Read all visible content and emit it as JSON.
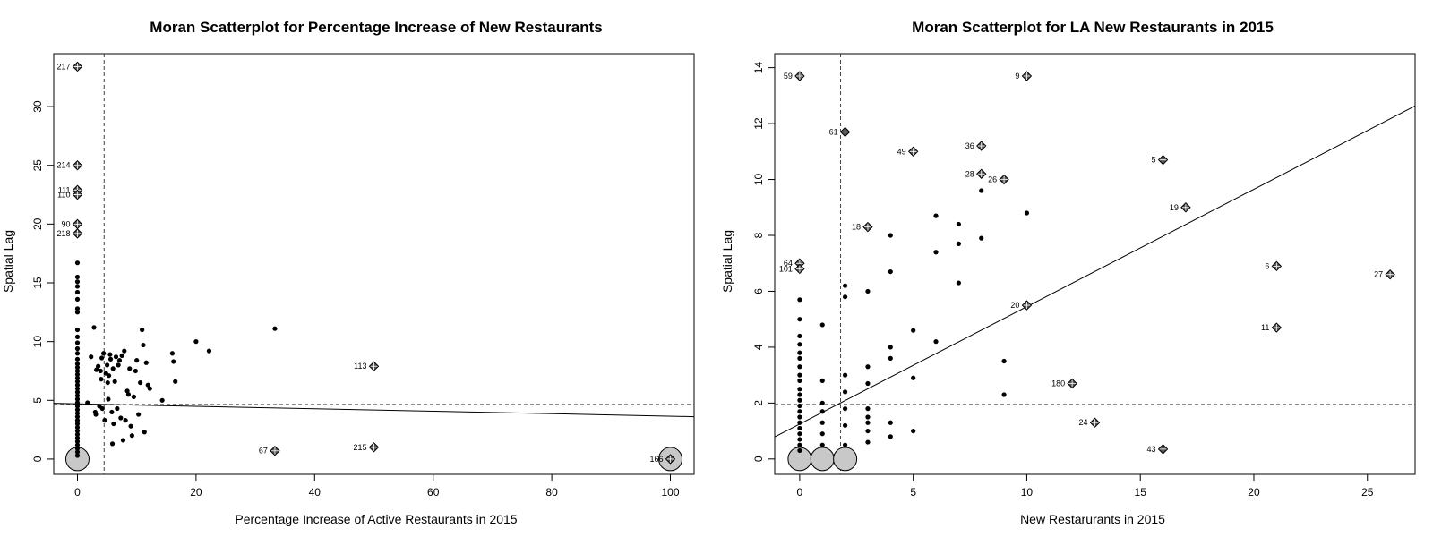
{
  "chart_data": [
    {
      "type": "scatter",
      "title": "Moran Scatterplot for Percentage Increase of New Restaurants",
      "xlabel": "Percentage Increase of Active Restaurants in 2015",
      "ylabel": "Spatial Lag",
      "xlim": [
        -4,
        104
      ],
      "ylim": [
        -1.3,
        34.5
      ],
      "xticks": [
        0,
        20,
        40,
        60,
        80,
        100
      ],
      "yticks": [
        0,
        5,
        10,
        15,
        20,
        25,
        30
      ],
      "xticklabels": [
        "0",
        "20",
        "40",
        "60",
        "80",
        "100"
      ],
      "yticklabels": [
        "0",
        "5",
        "10",
        "15",
        "20",
        "25",
        "30"
      ],
      "mean_x": 4.5,
      "mean_y": 4.65,
      "regression": {
        "intercept": 4.7,
        "slope": -0.0105
      },
      "grid": false,
      "legend": "none",
      "points": [
        [
          0,
          0.3
        ],
        [
          0,
          0.6
        ],
        [
          0,
          0.9
        ],
        [
          0,
          1.2
        ],
        [
          0,
          1.5
        ],
        [
          0,
          1.8
        ],
        [
          0,
          2.1
        ],
        [
          0,
          2.4
        ],
        [
          0,
          2.7
        ],
        [
          0,
          3.0
        ],
        [
          0,
          3.3
        ],
        [
          0,
          3.6
        ],
        [
          0,
          3.9
        ],
        [
          0,
          4.2
        ],
        [
          0,
          4.5
        ],
        [
          0,
          4.8
        ],
        [
          0,
          5.1
        ],
        [
          0,
          5.4
        ],
        [
          0,
          5.7
        ],
        [
          0,
          6.0
        ],
        [
          0,
          6.3
        ],
        [
          0,
          6.6
        ],
        [
          0,
          6.9
        ],
        [
          0,
          7.2
        ],
        [
          0,
          7.5
        ],
        [
          0,
          7.8
        ],
        [
          0,
          8.1
        ],
        [
          0,
          8.5
        ],
        [
          0,
          9.0
        ],
        [
          0,
          9.4
        ],
        [
          0,
          9.9
        ],
        [
          0,
          10.4
        ],
        [
          0,
          11.0
        ],
        [
          0,
          12.5
        ],
        [
          0,
          12.8
        ],
        [
          0,
          13.6
        ],
        [
          0,
          14.2
        ],
        [
          0,
          14.7
        ],
        [
          0,
          15.1
        ],
        [
          0,
          15.5
        ],
        [
          0,
          16.7
        ],
        [
          1.7,
          4.8
        ],
        [
          2.3,
          8.7
        ],
        [
          2.8,
          11.2
        ],
        [
          3.0,
          4.0
        ],
        [
          3.1,
          3.8
        ],
        [
          3.2,
          7.6
        ],
        [
          3.5,
          7.9
        ],
        [
          3.7,
          4.5
        ],
        [
          3.9,
          7.5
        ],
        [
          4.0,
          6.8
        ],
        [
          4.1,
          8.6
        ],
        [
          4.2,
          4.3
        ],
        [
          4.4,
          9.0
        ],
        [
          4.6,
          3.3
        ],
        [
          4.8,
          7.3
        ],
        [
          5.0,
          8.0
        ],
        [
          5.1,
          6.5
        ],
        [
          5.2,
          5.1
        ],
        [
          5.3,
          7.1
        ],
        [
          5.5,
          8.9
        ],
        [
          5.6,
          8.5
        ],
        [
          5.8,
          4.0
        ],
        [
          5.9,
          1.3
        ],
        [
          6.0,
          7.7
        ],
        [
          6.1,
          3.0
        ],
        [
          6.3,
          6.6
        ],
        [
          6.5,
          8.7
        ],
        [
          6.7,
          4.3
        ],
        [
          6.9,
          8.0
        ],
        [
          7.1,
          8.4
        ],
        [
          7.3,
          3.5
        ],
        [
          7.5,
          8.8
        ],
        [
          7.7,
          1.6
        ],
        [
          7.9,
          9.2
        ],
        [
          8.1,
          3.3
        ],
        [
          8.4,
          5.8
        ],
        [
          8.6,
          5.5
        ],
        [
          8.8,
          7.7
        ],
        [
          9.0,
          2.8
        ],
        [
          9.2,
          2.0
        ],
        [
          9.5,
          5.3
        ],
        [
          9.8,
          7.5
        ],
        [
          10.0,
          8.4
        ],
        [
          10.3,
          3.8
        ],
        [
          10.6,
          6.5
        ],
        [
          10.9,
          11.0
        ],
        [
          11.1,
          9.7
        ],
        [
          11.3,
          2.3
        ],
        [
          11.6,
          8.2
        ],
        [
          11.9,
          6.3
        ],
        [
          12.2,
          6.0
        ],
        [
          14.3,
          5.0
        ],
        [
          16.0,
          9.0
        ],
        [
          16.2,
          8.3
        ],
        [
          16.5,
          6.6
        ],
        [
          20.0,
          10.0
        ],
        [
          22.2,
          9.2
        ],
        [
          33.3,
          11.1
        ]
      ],
      "influential": [
        {
          "x": 0,
          "y": 33.4,
          "label": "217",
          "label_side": "left"
        },
        {
          "x": 0,
          "y": 25.0,
          "label": "214",
          "label_side": "left"
        },
        {
          "x": 0,
          "y": 22.9,
          "label": "111",
          "label_side": "left"
        },
        {
          "x": 0,
          "y": 22.5,
          "label": "110",
          "label_side": "left"
        },
        {
          "x": 0,
          "y": 20.0,
          "label": "90",
          "label_side": "left"
        },
        {
          "x": 0,
          "y": 19.2,
          "label": "218",
          "label_side": "left"
        },
        {
          "x": 50,
          "y": 7.9,
          "label": "113",
          "label_side": "left"
        },
        {
          "x": 33.3,
          "y": 0.7,
          "label": "67",
          "label_side": "left"
        },
        {
          "x": 50,
          "y": 1.0,
          "label": "215",
          "label_side": "left"
        },
        {
          "x": 100,
          "y": 0,
          "label": "166",
          "label_side": "left"
        }
      ],
      "clusters": [
        {
          "x": 0,
          "y": 0
        },
        {
          "x": 100,
          "y": 0
        }
      ]
    },
    {
      "type": "scatter",
      "title": "Moran Scatterplot for LA New Restaurants in 2015",
      "xlabel": "New Restarurants in 2015",
      "ylabel": "Spatial Lag",
      "xlim": [
        -1.1,
        27.1
      ],
      "ylim": [
        -0.55,
        14.5
      ],
      "xticks": [
        0,
        5,
        10,
        15,
        20,
        25
      ],
      "yticks": [
        0,
        2,
        4,
        6,
        8,
        10,
        12,
        14
      ],
      "xticklabels": [
        "0",
        "5",
        "10",
        "15",
        "20",
        "25"
      ],
      "yticklabels": [
        "0",
        "2",
        "4",
        "6",
        "8",
        "10",
        "12",
        "14"
      ],
      "mean_x": 1.8,
      "mean_y": 1.95,
      "regression": {
        "intercept": 1.25,
        "slope": 0.42
      },
      "grid": false,
      "legend": "none",
      "points": [
        [
          0,
          0.3
        ],
        [
          0,
          0.5
        ],
        [
          0,
          0.7
        ],
        [
          0,
          0.9
        ],
        [
          0,
          1.1
        ],
        [
          0,
          1.3
        ],
        [
          0,
          1.5
        ],
        [
          0,
          1.7
        ],
        [
          0,
          1.9
        ],
        [
          0,
          2.1
        ],
        [
          0,
          2.3
        ],
        [
          0,
          2.5
        ],
        [
          0,
          2.8
        ],
        [
          0,
          3.0
        ],
        [
          0,
          3.3
        ],
        [
          0,
          3.6
        ],
        [
          0,
          3.8
        ],
        [
          0,
          4.1
        ],
        [
          0,
          4.4
        ],
        [
          0,
          5.0
        ],
        [
          0,
          5.7
        ],
        [
          1,
          0.5
        ],
        [
          1,
          0.9
        ],
        [
          1,
          1.3
        ],
        [
          1,
          1.7
        ],
        [
          1,
          2.0
        ],
        [
          1,
          2.8
        ],
        [
          1,
          4.8
        ],
        [
          2,
          0.5
        ],
        [
          2,
          1.2
        ],
        [
          2,
          1.8
        ],
        [
          2,
          2.4
        ],
        [
          2,
          3.0
        ],
        [
          2,
          5.8
        ],
        [
          2,
          6.2
        ],
        [
          3,
          0.6
        ],
        [
          3,
          1.0
        ],
        [
          3,
          1.3
        ],
        [
          3,
          1.5
        ],
        [
          3,
          1.8
        ],
        [
          3,
          2.7
        ],
        [
          3,
          3.3
        ],
        [
          3,
          6.0
        ],
        [
          4,
          0.8
        ],
        [
          4,
          1.3
        ],
        [
          4,
          3.6
        ],
        [
          4,
          4.0
        ],
        [
          4,
          6.7
        ],
        [
          4,
          8.0
        ],
        [
          5,
          1.0
        ],
        [
          5,
          2.9
        ],
        [
          5,
          4.6
        ],
        [
          6,
          4.2
        ],
        [
          6,
          7.4
        ],
        [
          6,
          8.7
        ],
        [
          7,
          6.3
        ],
        [
          7,
          7.7
        ],
        [
          7,
          8.4
        ],
        [
          8,
          7.9
        ],
        [
          8,
          9.6
        ],
        [
          9,
          2.3
        ],
        [
          9,
          3.5
        ],
        [
          10,
          8.8
        ]
      ],
      "influential": [
        {
          "x": 0,
          "y": 13.7,
          "label": "59",
          "label_side": "left"
        },
        {
          "x": 10,
          "y": 13.7,
          "label": "9",
          "label_side": "left"
        },
        {
          "x": 2,
          "y": 11.7,
          "label": "61",
          "label_side": "left"
        },
        {
          "x": 5,
          "y": 11.0,
          "label": "49",
          "label_side": "left"
        },
        {
          "x": 8,
          "y": 11.2,
          "label": "36",
          "label_side": "left"
        },
        {
          "x": 8,
          "y": 10.2,
          "label": "28",
          "label_side": "left"
        },
        {
          "x": 9,
          "y": 10.0,
          "label": "26",
          "label_side": "left"
        },
        {
          "x": 16,
          "y": 10.7,
          "label": "5",
          "label_side": "left"
        },
        {
          "x": 17,
          "y": 9.0,
          "label": "19",
          "label_side": "left"
        },
        {
          "x": 3,
          "y": 8.3,
          "label": "18",
          "label_side": "left"
        },
        {
          "x": 0,
          "y": 7.0,
          "label": "64",
          "label_side": "left"
        },
        {
          "x": 0,
          "y": 6.8,
          "label": "101",
          "label_side": "left"
        },
        {
          "x": 21,
          "y": 6.9,
          "label": "6",
          "label_side": "left"
        },
        {
          "x": 26,
          "y": 6.6,
          "label": "27",
          "label_side": "left"
        },
        {
          "x": 10,
          "y": 5.5,
          "label": "20",
          "label_side": "left"
        },
        {
          "x": 21,
          "y": 4.7,
          "label": "11",
          "label_side": "left"
        },
        {
          "x": 12,
          "y": 2.7,
          "label": "180",
          "label_side": "left"
        },
        {
          "x": 13,
          "y": 1.3,
          "label": "24",
          "label_side": "left"
        },
        {
          "x": 16,
          "y": 0.35,
          "label": "43",
          "label_side": "left"
        }
      ],
      "clusters": [
        {
          "x": 0,
          "y": 0
        },
        {
          "x": 1,
          "y": 0
        },
        {
          "x": 2,
          "y": 0
        }
      ]
    }
  ]
}
